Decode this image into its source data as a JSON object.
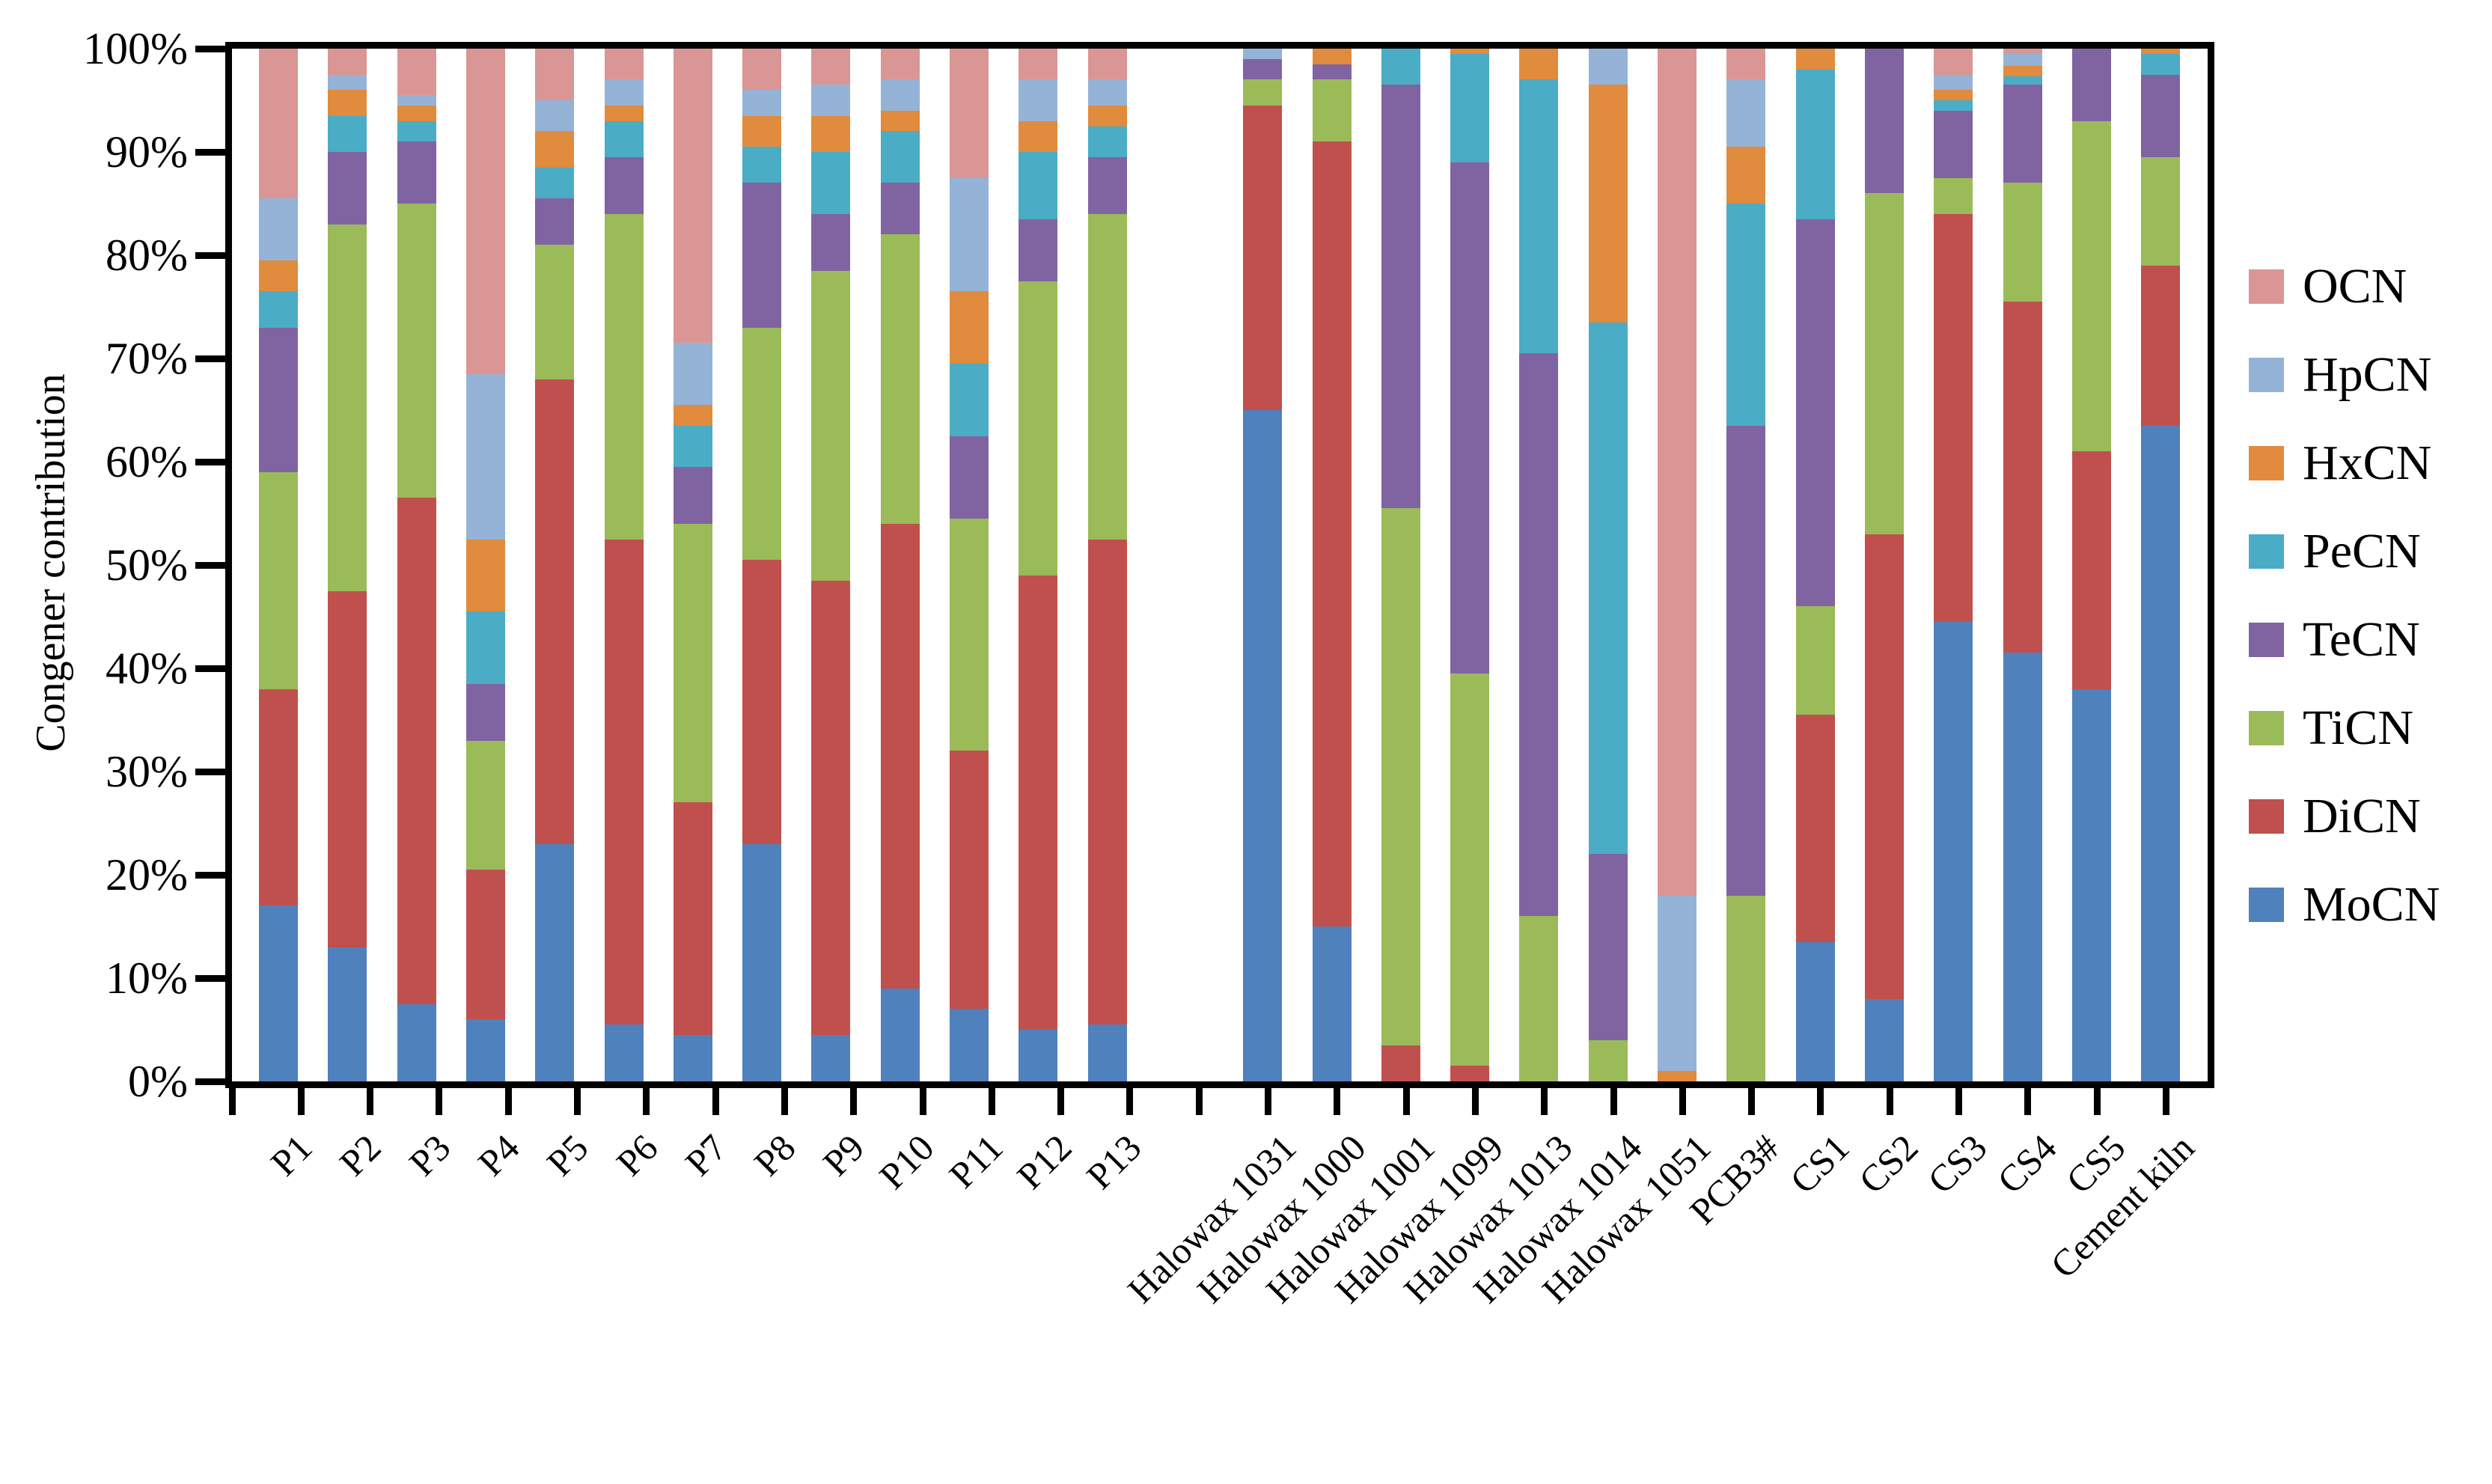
{
  "page": {
    "background": "#FFFFFF"
  },
  "chart_data": {
    "type": "bar",
    "stacked": true,
    "orientation": "vertical",
    "title": "",
    "xlabel": "",
    "ylabel": "Congener contribution",
    "ylim": [
      0,
      100
    ],
    "y_tick_labels": [
      "0%",
      "10%",
      "20%",
      "30%",
      "40%",
      "50%",
      "60%",
      "70%",
      "80%",
      "90%",
      "100%"
    ],
    "grid": false,
    "legend_position": "right",
    "legend_order_top_to_bottom": [
      "OCN",
      "HpCN",
      "HxCN",
      "PeCN",
      "TeCN",
      "TiCN",
      "DiCN",
      "MoCN"
    ],
    "gap_after_category": "P13",
    "units": "percent",
    "categories": [
      "P1",
      "P2",
      "P3",
      "P4",
      "P5",
      "P6",
      "P7",
      "P8",
      "P9",
      "P10",
      "P11",
      "P12",
      "P13",
      "Halowax 1031",
      "Halowax 1000",
      "Halowax 1001",
      "Halowax 1099",
      "Halowax 1013",
      "Halowax 1014",
      "Halowax 1051",
      "PCB3#",
      "CS1",
      "CS2",
      "CS3",
      "CS4",
      "CS5",
      "Cement kiln"
    ],
    "series": [
      {
        "name": "MoCN",
        "color": "#4F81BD",
        "values": [
          17,
          13,
          7.5,
          6,
          23,
          5.5,
          4.5,
          23,
          4.5,
          9,
          7,
          5,
          5.5,
          65,
          15,
          0,
          0,
          0,
          0,
          0,
          0,
          13.5,
          8,
          44.5,
          41.5,
          38,
          63.5
        ]
      },
      {
        "name": "DiCN",
        "color": "#C0504D",
        "values": [
          21,
          34.5,
          49,
          14.5,
          45,
          47,
          22.5,
          27.5,
          44,
          45,
          25,
          44,
          47,
          29.5,
          76,
          3.5,
          1.5,
          0,
          0,
          0,
          0,
          22,
          45,
          39.5,
          34,
          23,
          15.5
        ]
      },
      {
        "name": "TiCN",
        "color": "#9BBB59",
        "values": [
          21,
          35.5,
          28.5,
          12.5,
          13,
          31.5,
          27,
          22.5,
          30,
          28,
          22.5,
          28.5,
          31.5,
          2.5,
          6,
          52,
          38,
          16,
          4,
          0,
          18,
          10.5,
          33,
          3.5,
          11.5,
          32,
          10.5
        ]
      },
      {
        "name": "TeCN",
        "color": "#8064A2",
        "values": [
          14,
          7,
          6,
          5.5,
          4.5,
          5.5,
          5.5,
          14,
          5.5,
          5,
          8,
          6,
          5.5,
          2,
          1.5,
          41,
          49.5,
          54.5,
          18,
          0,
          45.5,
          37.5,
          14,
          6.5,
          9.5,
          7,
          8
        ]
      },
      {
        "name": "PeCN",
        "color": "#4BACC6",
        "values": [
          3.5,
          3.5,
          2,
          7,
          3,
          3.5,
          4,
          3.5,
          6,
          5,
          7,
          6.5,
          3,
          0,
          0,
          3.5,
          10.5,
          26.5,
          51.5,
          0,
          21.5,
          14.5,
          0,
          1,
          0.8,
          0,
          2
        ]
      },
      {
        "name": "HxCN",
        "color": "#E08B3D",
        "values": [
          3,
          2.5,
          1.5,
          7,
          3.5,
          1.5,
          2,
          3,
          3.5,
          2,
          7,
          3,
          2,
          0,
          1.5,
          0,
          0.5,
          3,
          23,
          1,
          5.5,
          2,
          0,
          1,
          1,
          0,
          0.5
        ]
      },
      {
        "name": "HpCN",
        "color": "#95B3D7",
        "values": [
          6,
          1.5,
          1,
          16,
          3,
          2.5,
          6,
          2.5,
          3,
          3,
          11,
          4,
          2.5,
          1,
          0,
          0,
          0,
          0,
          3.5,
          17,
          6.5,
          0,
          0,
          1.5,
          1.2,
          0,
          0
        ]
      },
      {
        "name": "OCN",
        "color": "#D99694",
        "values": [
          14.5,
          2.5,
          4.5,
          31.5,
          5,
          3,
          28.5,
          4,
          3.5,
          3,
          12.5,
          3,
          3,
          0,
          0,
          0,
          0,
          0,
          0,
          82,
          3,
          0,
          0,
          2.5,
          0.5,
          0,
          0
        ]
      }
    ]
  }
}
